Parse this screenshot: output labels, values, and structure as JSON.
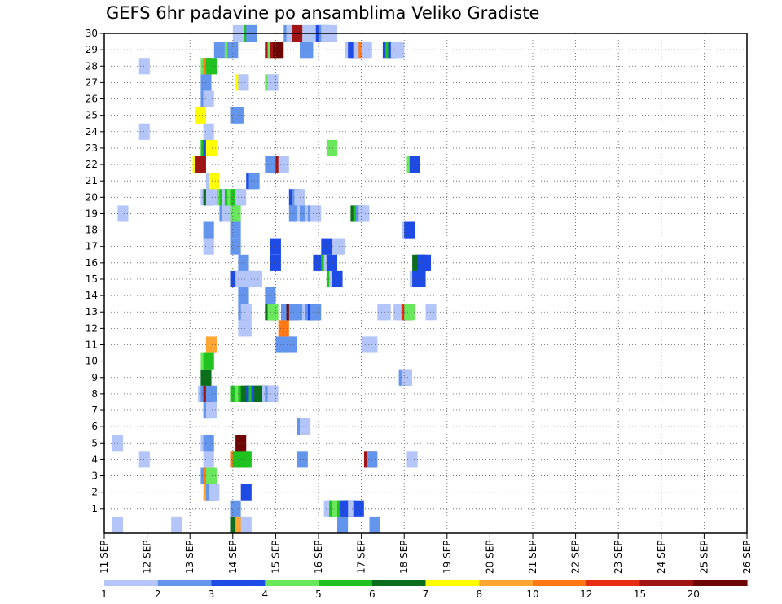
{
  "chart_data": {
    "type": "heatmap",
    "title": "GEFS 6hr padavine po ansamblima Veliko Gradiste",
    "x_ticks": [
      "11 SEP",
      "12 SEP",
      "13 SEP",
      "14 SEP",
      "15 SEP",
      "16 SEP",
      "17 SEP",
      "18 SEP",
      "19 SEP",
      "20 SEP",
      "21 SEP",
      "22 SEP",
      "23 SEP",
      "24 SEP",
      "25 SEP",
      "26 SEP"
    ],
    "y_ticks": [
      1,
      2,
      3,
      4,
      5,
      6,
      7,
      8,
      9,
      10,
      11,
      12,
      13,
      14,
      15,
      16,
      17,
      18,
      19,
      20,
      21,
      22,
      23,
      24,
      25,
      26,
      27,
      28,
      29,
      30
    ],
    "xlim_days": [
      11,
      26
    ],
    "ylim_members": [
      0,
      30
    ],
    "time_step_hours": 6,
    "grid": "dotted",
    "legend": {
      "placement": "bottom",
      "labels": [
        "1",
        "2",
        "3",
        "4",
        "5",
        "6",
        "7",
        "8",
        "10",
        "12",
        "15",
        "20"
      ],
      "colors": [
        "#b4c5fa",
        "#6495ed",
        "#1e4be6",
        "#6ae85c",
        "#1fc21f",
        "#0a6e1c",
        "#ffff00",
        "#ffa532",
        "#ff7814",
        "#e62d14",
        "#a01414",
        "#6e0505"
      ]
    },
    "levels_legend": "level index k (1..12) = colour band between successive legend labels",
    "cells": [
      [
        0.75,
        0,
        1
      ],
      [
        6.25,
        0,
        1
      ],
      [
        11.75,
        0,
        6
      ],
      [
        12.25,
        0,
        8
      ],
      [
        12.75,
        0,
        1
      ],
      [
        21.75,
        0,
        2
      ],
      [
        24.75,
        0,
        2
      ],
      [
        11.75,
        1,
        2
      ],
      [
        20.5,
        1,
        1
      ],
      [
        20.75,
        1,
        1
      ],
      [
        21,
        1,
        5
      ],
      [
        21.25,
        1,
        4
      ],
      [
        21.5,
        1,
        4
      ],
      [
        21.75,
        1,
        5
      ],
      [
        22,
        1,
        3
      ],
      [
        22.25,
        1,
        3
      ],
      [
        22.5,
        1,
        3
      ],
      [
        22.75,
        1,
        1
      ],
      [
        23.25,
        1,
        3
      ],
      [
        9.25,
        2,
        8
      ],
      [
        9.5,
        2,
        2
      ],
      [
        9.75,
        2,
        1
      ],
      [
        12.75,
        2,
        3
      ],
      [
        9,
        3,
        2
      ],
      [
        9.25,
        3,
        9
      ],
      [
        9.5,
        3,
        4
      ],
      [
        3.25,
        4,
        1
      ],
      [
        9.25,
        4,
        1
      ],
      [
        11.75,
        4,
        9
      ],
      [
        12,
        4,
        5
      ],
      [
        12.25,
        4,
        5
      ],
      [
        12.5,
        4,
        5
      ],
      [
        12.75,
        4,
        5
      ],
      [
        18,
        4,
        2
      ],
      [
        24.25,
        4,
        11
      ],
      [
        24.5,
        4,
        2
      ],
      [
        28.25,
        4,
        1
      ],
      [
        0.75,
        5,
        1
      ],
      [
        9,
        5,
        1
      ],
      [
        9.25,
        5,
        2
      ],
      [
        12.25,
        5,
        12
      ],
      [
        18,
        6,
        2
      ],
      [
        18.25,
        6,
        1
      ],
      [
        9.25,
        7,
        2
      ],
      [
        9.5,
        7,
        1
      ],
      [
        8.75,
        8,
        1
      ],
      [
        9,
        8,
        2
      ],
      [
        9.25,
        8,
        11
      ],
      [
        9.5,
        8,
        2
      ],
      [
        11.75,
        8,
        5
      ],
      [
        12.25,
        8,
        4
      ],
      [
        12.5,
        8,
        5
      ],
      [
        12.75,
        8,
        6
      ],
      [
        13,
        8,
        6
      ],
      [
        13.25,
        8,
        3
      ],
      [
        13.5,
        8,
        5
      ],
      [
        13.75,
        8,
        3
      ],
      [
        14,
        8,
        6
      ],
      [
        14.25,
        8,
        6
      ],
      [
        14.5,
        8,
        6
      ],
      [
        14.75,
        8,
        1
      ],
      [
        15,
        8,
        2
      ],
      [
        15.25,
        8,
        1
      ],
      [
        9,
        9,
        6
      ],
      [
        27.5,
        9,
        2
      ],
      [
        27.75,
        9,
        1
      ],
      [
        9,
        10,
        4
      ],
      [
        9.25,
        10,
        5
      ],
      [
        9.5,
        11,
        8
      ],
      [
        16,
        11,
        2
      ],
      [
        16.25,
        11,
        2
      ],
      [
        16.75,
        11,
        2
      ],
      [
        17,
        11,
        2
      ],
      [
        24,
        11,
        1
      ],
      [
        24.5,
        11,
        1
      ],
      [
        12.5,
        12,
        1
      ],
      [
        12.75,
        12,
        1
      ],
      [
        16.25,
        12,
        9
      ],
      [
        12.5,
        13,
        2
      ],
      [
        12.75,
        13,
        1
      ],
      [
        15,
        13,
        6
      ],
      [
        15.25,
        13,
        4
      ],
      [
        16.5,
        13,
        2
      ],
      [
        16.75,
        13,
        2
      ],
      [
        17,
        13,
        12
      ],
      [
        17.25,
        13,
        2
      ],
      [
        17.5,
        13,
        2
      ],
      [
        18.5,
        13,
        1
      ],
      [
        18.75,
        13,
        2
      ],
      [
        19,
        13,
        3
      ],
      [
        19.25,
        13,
        2
      ],
      [
        25.5,
        13,
        1
      ],
      [
        25.75,
        13,
        1
      ],
      [
        27,
        13,
        1
      ],
      [
        27.25,
        13,
        1
      ],
      [
        27.5,
        13,
        1
      ],
      [
        27.75,
        13,
        10
      ],
      [
        28,
        13,
        4
      ],
      [
        30,
        13,
        1
      ],
      [
        12.5,
        14,
        2
      ],
      [
        15,
        14,
        2
      ],
      [
        11.75,
        15,
        3
      ],
      [
        12.25,
        15,
        1
      ],
      [
        12.5,
        15,
        1
      ],
      [
        12.75,
        15,
        1
      ],
      [
        13,
        15,
        1
      ],
      [
        13.25,
        15,
        1
      ],
      [
        13.5,
        15,
        1
      ],
      [
        13.75,
        15,
        1
      ],
      [
        20.75,
        15,
        5
      ],
      [
        21,
        15,
        1
      ],
      [
        21.25,
        15,
        3
      ],
      [
        28.5,
        15,
        1
      ],
      [
        28.75,
        15,
        3
      ],
      [
        29,
        15,
        3
      ],
      [
        12.5,
        16,
        2
      ],
      [
        15.5,
        16,
        3
      ],
      [
        19.5,
        16,
        3
      ],
      [
        20.25,
        16,
        5
      ],
      [
        20.5,
        16,
        1
      ],
      [
        20.75,
        16,
        3
      ],
      [
        28.75,
        16,
        6
      ],
      [
        29,
        16,
        6
      ],
      [
        29.25,
        16,
        3
      ],
      [
        29.5,
        16,
        3
      ],
      [
        9.25,
        17,
        1
      ],
      [
        11.75,
        17,
        2
      ],
      [
        15.5,
        17,
        3
      ],
      [
        20.25,
        17,
        3
      ],
      [
        21.25,
        17,
        1
      ],
      [
        21.5,
        17,
        1
      ],
      [
        9.25,
        18,
        2
      ],
      [
        11.75,
        18,
        2
      ],
      [
        27.75,
        18,
        1
      ],
      [
        28,
        18,
        3
      ],
      [
        1.25,
        19,
        1
      ],
      [
        10.75,
        19,
        2
      ],
      [
        11,
        19,
        1
      ],
      [
        11.75,
        19,
        4
      ],
      [
        17.25,
        19,
        2
      ],
      [
        18,
        19,
        1
      ],
      [
        18.25,
        19,
        2
      ],
      [
        18.75,
        19,
        1
      ],
      [
        19,
        19,
        2
      ],
      [
        19.25,
        19,
        1
      ],
      [
        23,
        19,
        6
      ],
      [
        23.25,
        19,
        5
      ],
      [
        23.5,
        19,
        2
      ],
      [
        23.75,
        19,
        1
      ],
      [
        9,
        20,
        1
      ],
      [
        9.25,
        20,
        6
      ],
      [
        9.5,
        20,
        1
      ],
      [
        10.5,
        20,
        4
      ],
      [
        10.75,
        20,
        5
      ],
      [
        11,
        20,
        1
      ],
      [
        11.25,
        20,
        5
      ],
      [
        11.5,
        20,
        4
      ],
      [
        11.75,
        20,
        5
      ],
      [
        12,
        20,
        5
      ],
      [
        12.25,
        20,
        1
      ],
      [
        17.25,
        20,
        3
      ],
      [
        17.5,
        20,
        2
      ],
      [
        17.75,
        20,
        1
      ],
      [
        9.5,
        21,
        1
      ],
      [
        9.75,
        21,
        7
      ],
      [
        13.25,
        21,
        3
      ],
      [
        13.5,
        21,
        2
      ],
      [
        8.25,
        22,
        7
      ],
      [
        8.5,
        22,
        11
      ],
      [
        15,
        22,
        2
      ],
      [
        16,
        22,
        11
      ],
      [
        16.25,
        22,
        1
      ],
      [
        28.25,
        22,
        4
      ],
      [
        28.5,
        22,
        3
      ],
      [
        9,
        23,
        5
      ],
      [
        9.25,
        23,
        3
      ],
      [
        9.5,
        23,
        7
      ],
      [
        20.75,
        23,
        4
      ],
      [
        3.25,
        24,
        1
      ],
      [
        9.25,
        24,
        1
      ],
      [
        8.5,
        25,
        7
      ],
      [
        11.75,
        25,
        2
      ],
      [
        12,
        25,
        2
      ],
      [
        9,
        26,
        2
      ],
      [
        9.25,
        26,
        1
      ],
      [
        9,
        27,
        2
      ],
      [
        12.25,
        27,
        7
      ],
      [
        12.5,
        27,
        1
      ],
      [
        15,
        27,
        4
      ],
      [
        15.25,
        27,
        1
      ],
      [
        3.25,
        28,
        1
      ],
      [
        9,
        28,
        4
      ],
      [
        9.25,
        28,
        9
      ],
      [
        9.5,
        28,
        5
      ],
      [
        10.25,
        29,
        2
      ],
      [
        11.25,
        29,
        4
      ],
      [
        11.5,
        29,
        2
      ],
      [
        15,
        29,
        11
      ],
      [
        15.25,
        29,
        4
      ],
      [
        15.5,
        29,
        11
      ],
      [
        15.75,
        29,
        12
      ],
      [
        18.25,
        29,
        2
      ],
      [
        18.5,
        29,
        2
      ],
      [
        22.5,
        29,
        1
      ],
      [
        22.75,
        29,
        3
      ],
      [
        23,
        29,
        3
      ],
      [
        23.25,
        29,
        1
      ],
      [
        23.5,
        29,
        1
      ],
      [
        23.75,
        29,
        9
      ],
      [
        24,
        29,
        1
      ],
      [
        26,
        29,
        3
      ],
      [
        26.25,
        29,
        5
      ],
      [
        26.5,
        29,
        3
      ],
      [
        26.75,
        29,
        1
      ],
      [
        27,
        29,
        1
      ],
      [
        12,
        30,
        1
      ],
      [
        13,
        30,
        5
      ],
      [
        13.25,
        30,
        2
      ],
      [
        16.75,
        30,
        2
      ],
      [
        17,
        30,
        1
      ],
      [
        17.5,
        30,
        11
      ],
      [
        18.5,
        30,
        1
      ],
      [
        18.75,
        30,
        1
      ],
      [
        19.5,
        30,
        1
      ],
      [
        19.75,
        30,
        3
      ],
      [
        20,
        30,
        2
      ],
      [
        20.25,
        30,
        1
      ],
      [
        20.5,
        30,
        1
      ],
      [
        20.75,
        30,
        1
      ]
    ]
  }
}
